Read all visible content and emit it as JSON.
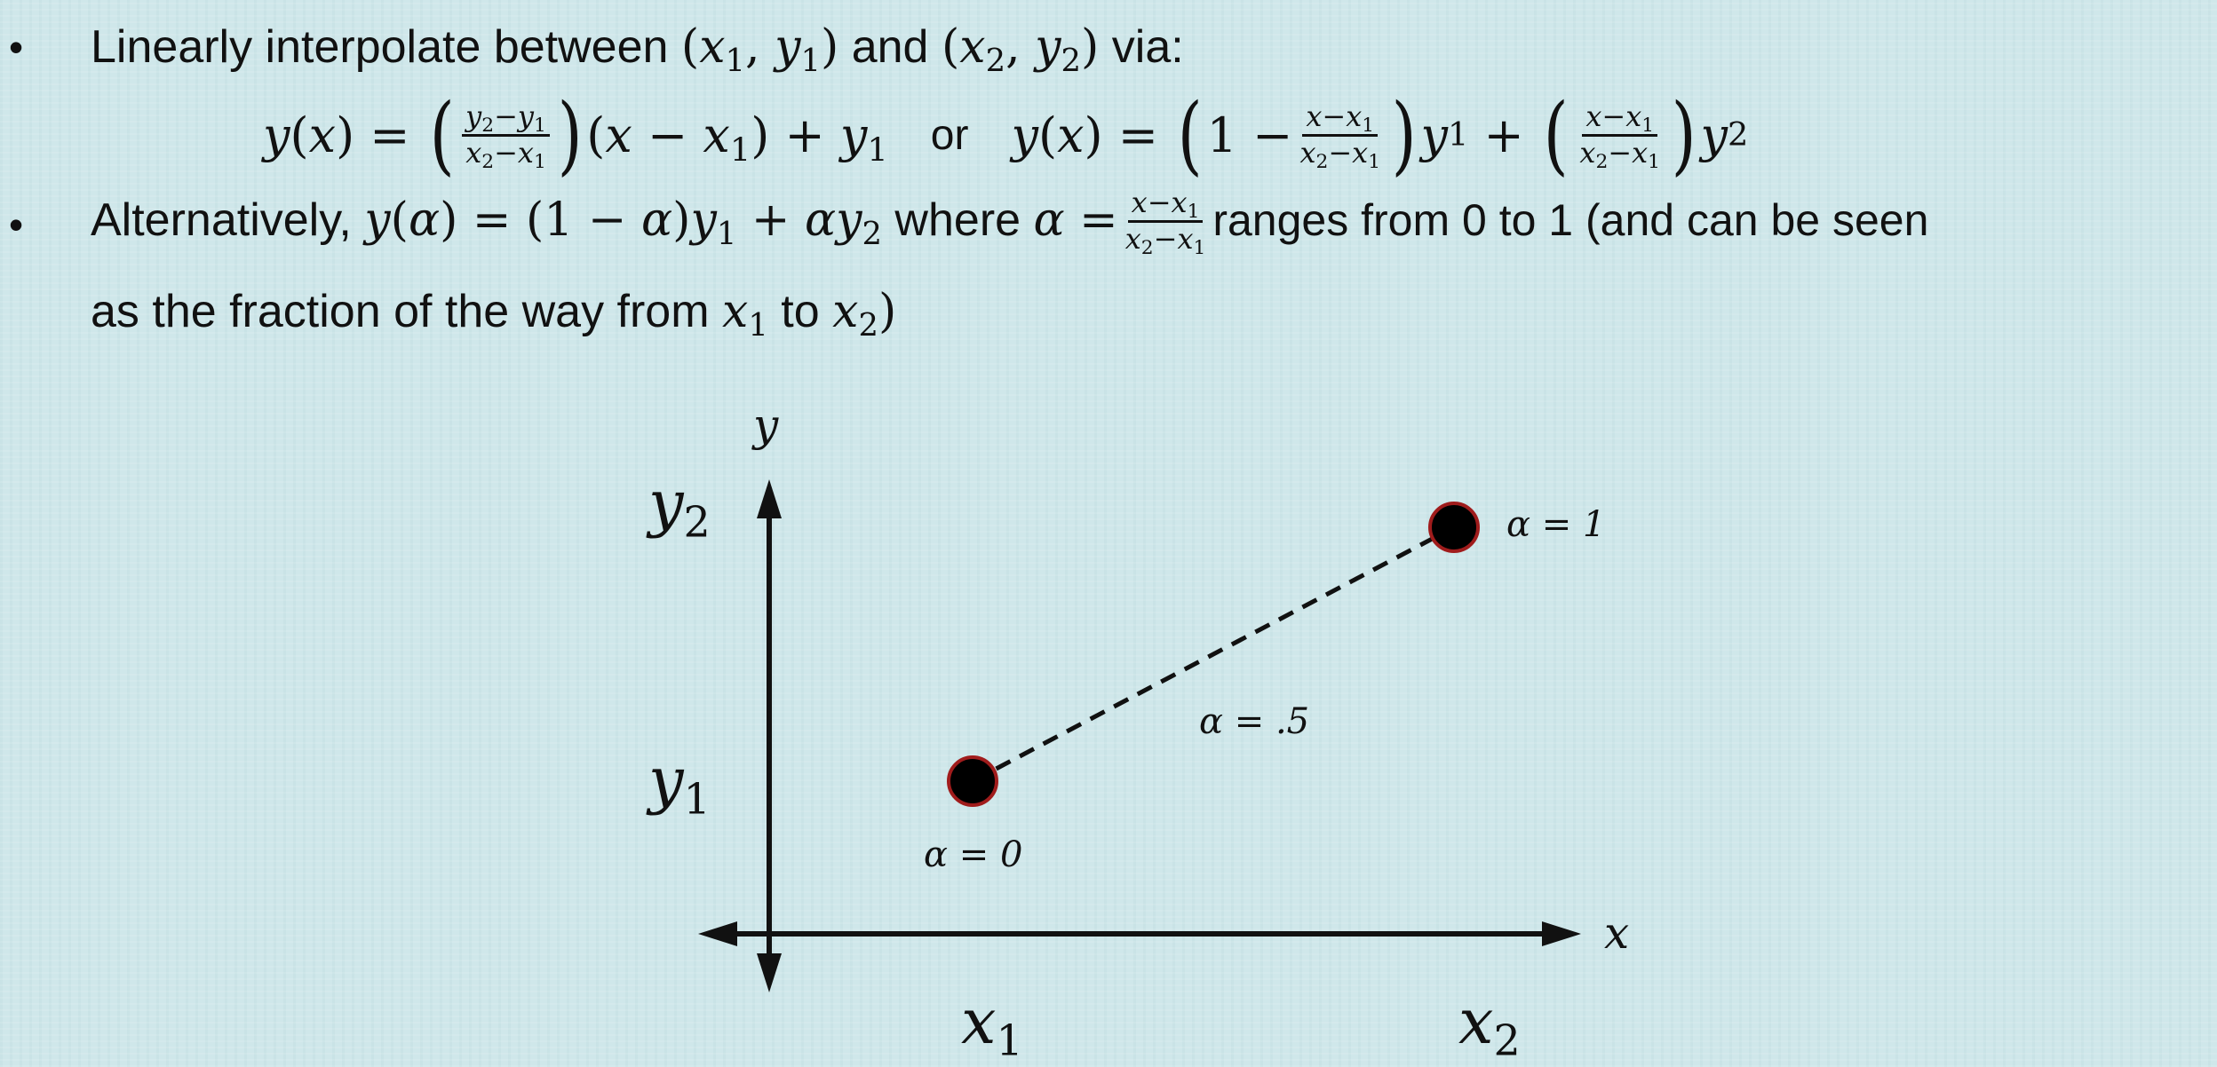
{
  "bullets": [
    {
      "symbol": "•",
      "text_intro": "Linearly interpolate between",
      "text_and": "and",
      "text_via": "via:"
    },
    {
      "symbol": "•",
      "text_intro": "Alternatively,",
      "text_where": "where",
      "text_ranges": "ranges from 0 to 1 (and can be seen",
      "text_line2_pre": "as the fraction of the way from",
      "text_line2_to": "to"
    }
  ],
  "equation": {
    "or_text": "or"
  },
  "diagram": {
    "y_axis_label": "y",
    "x_axis_label": "x",
    "y2_label": "y",
    "y2_sub": "2",
    "y1_label": "y",
    "y1_sub": "1",
    "x1_label": "x",
    "x1_sub": "1",
    "x2_label": "x",
    "x2_sub": "2",
    "alpha0_label": "α = 0",
    "alpha_half_label": "α = .5",
    "alpha1_label": "α = 1",
    "point_fill": "#000000",
    "point_stroke": "#a01c1c",
    "background": "#cfe7ea"
  }
}
